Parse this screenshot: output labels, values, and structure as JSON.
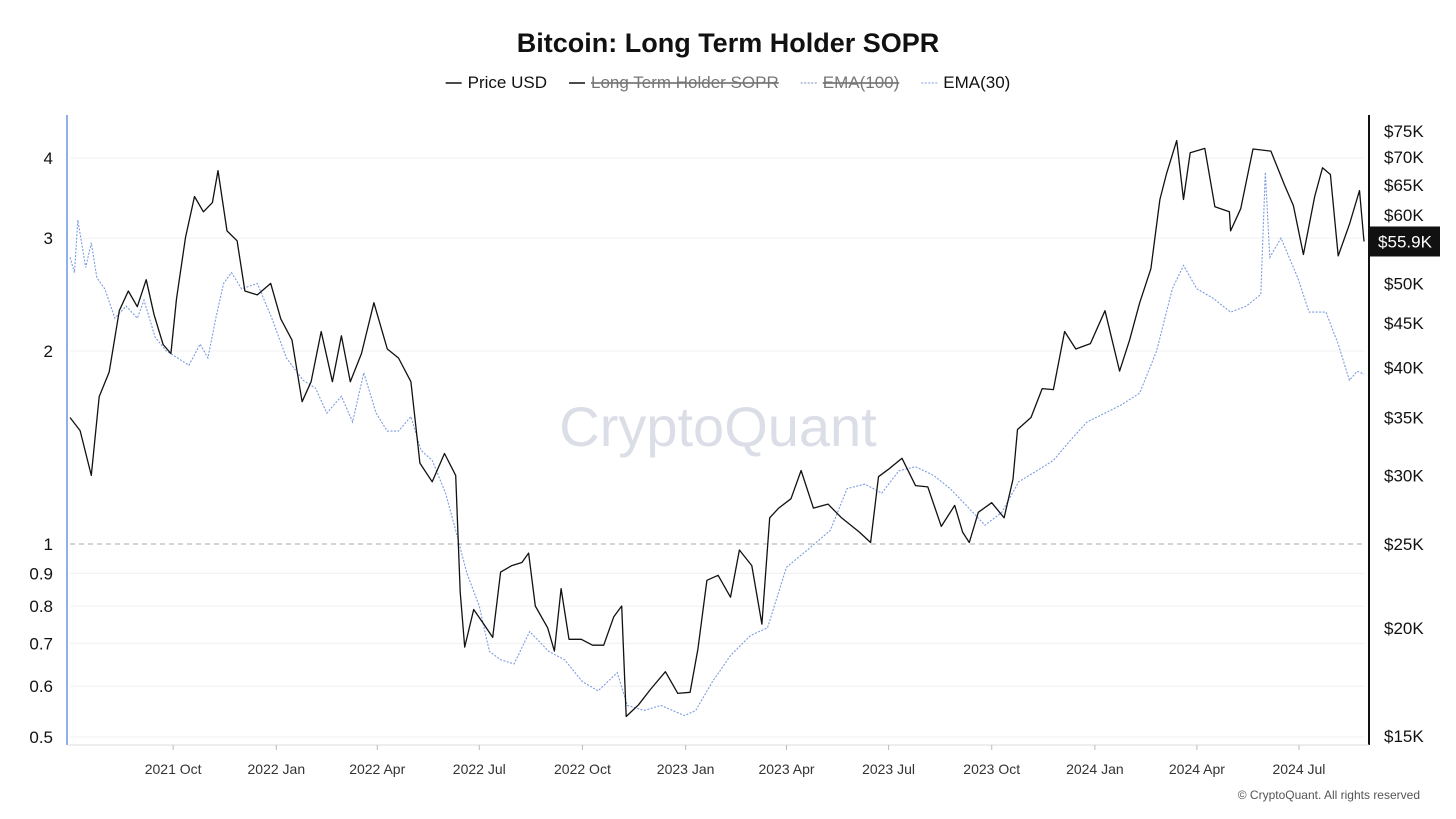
{
  "chart_data": {
    "type": "line",
    "title": "Bitcoin: Long Term Holder SOPR",
    "legend": {
      "placement": "top-center",
      "entries": [
        {
          "name": "Price USD",
          "active": true,
          "color": "#111111",
          "style": "solid"
        },
        {
          "name": "Long Term Holder SOPR",
          "active": false,
          "color": "#111111",
          "style": "solid"
        },
        {
          "name": "EMA(100)",
          "active": false,
          "color": "#7b8fb8",
          "style": "dashed"
        },
        {
          "name": "EMA(30)",
          "active": true,
          "color": "#7c9be0",
          "style": "dashed"
        }
      ]
    },
    "x_ticks": [
      "2021 Oct",
      "2022 Jan",
      "2022 Apr",
      "2022 Jul",
      "2022 Oct",
      "2023 Jan",
      "2023 Apr",
      "2023 Jul",
      "2023 Oct",
      "2024 Jan",
      "2024 Apr",
      "2024 Jul"
    ],
    "x_range": [
      "2021-07-01",
      "2024-08-28"
    ],
    "y_left": {
      "scale": "log",
      "range": [
        0.5,
        4.6
      ],
      "ticks": [
        {
          "value": 4,
          "label": "4"
        },
        {
          "value": 3,
          "label": "3"
        },
        {
          "value": 2,
          "label": "2"
        },
        {
          "value": 1,
          "label": "1"
        },
        {
          "value": 0.9,
          "label": "0.9"
        },
        {
          "value": 0.8,
          "label": "0.8"
        },
        {
          "value": 0.7,
          "label": "0.7"
        },
        {
          "value": 0.6,
          "label": "0.6"
        },
        {
          "value": 0.5,
          "label": "0.5"
        }
      ]
    },
    "y_right": {
      "scale": "log",
      "range": [
        15000,
        76000
      ],
      "ticks": [
        {
          "value": 75000,
          "label": "$75K"
        },
        {
          "value": 70000,
          "label": "$70K"
        },
        {
          "value": 65000,
          "label": "$65K"
        },
        {
          "value": 60000,
          "label": "$60K"
        },
        {
          "value": 50000,
          "label": "$50K"
        },
        {
          "value": 45000,
          "label": "$45K"
        },
        {
          "value": 40000,
          "label": "$40K"
        },
        {
          "value": 35000,
          "label": "$35K"
        },
        {
          "value": 30000,
          "label": "$30K"
        },
        {
          "value": 25000,
          "label": "$25K"
        },
        {
          "value": 20000,
          "label": "$20K"
        },
        {
          "value": 15000,
          "label": "$15K"
        }
      ]
    },
    "reference_line": {
      "axis": "left",
      "value": 1,
      "style": "dashed"
    },
    "current_value_badge": "$55.9K",
    "grid": true,
    "watermark": "CryptoQuant",
    "copyright": "© CryptoQuant. All rights reserved",
    "series": [
      {
        "name": "Price USD",
        "axis": "right",
        "points": [
          [
            "2021-07-01",
            35000
          ],
          [
            "2021-07-10",
            33800
          ],
          [
            "2021-07-20",
            30000
          ],
          [
            "2021-07-27",
            37000
          ],
          [
            "2021-08-05",
            39500
          ],
          [
            "2021-08-14",
            46500
          ],
          [
            "2021-08-22",
            49000
          ],
          [
            "2021-08-30",
            47000
          ],
          [
            "2021-09-07",
            50500
          ],
          [
            "2021-09-14",
            46000
          ],
          [
            "2021-09-22",
            42500
          ],
          [
            "2021-09-29",
            41500
          ],
          [
            "2021-10-04",
            48000
          ],
          [
            "2021-10-12",
            56500
          ],
          [
            "2021-10-20",
            63000
          ],
          [
            "2021-10-28",
            60500
          ],
          [
            "2021-11-05",
            62000
          ],
          [
            "2021-11-10",
            67500
          ],
          [
            "2021-11-18",
            57500
          ],
          [
            "2021-11-27",
            56000
          ],
          [
            "2021-12-04",
            49000
          ],
          [
            "2021-12-15",
            48500
          ],
          [
            "2021-12-27",
            50000
          ],
          [
            "2022-01-05",
            45500
          ],
          [
            "2022-01-15",
            43000
          ],
          [
            "2022-01-24",
            36500
          ],
          [
            "2022-02-01",
            38500
          ],
          [
            "2022-02-10",
            44000
          ],
          [
            "2022-02-20",
            38500
          ],
          [
            "2022-02-28",
            43500
          ],
          [
            "2022-03-08",
            38500
          ],
          [
            "2022-03-18",
            41500
          ],
          [
            "2022-03-29",
            47500
          ],
          [
            "2022-04-10",
            42000
          ],
          [
            "2022-04-20",
            41000
          ],
          [
            "2022-05-01",
            38500
          ],
          [
            "2022-05-09",
            31000
          ],
          [
            "2022-05-20",
            29500
          ],
          [
            "2022-05-31",
            31800
          ],
          [
            "2022-06-10",
            30000
          ],
          [
            "2022-06-14",
            22000
          ],
          [
            "2022-06-18",
            19000
          ],
          [
            "2022-06-26",
            21000
          ],
          [
            "2022-07-05",
            20200
          ],
          [
            "2022-07-13",
            19500
          ],
          [
            "2022-07-20",
            23200
          ],
          [
            "2022-07-30",
            23600
          ],
          [
            "2022-08-08",
            23800
          ],
          [
            "2022-08-14",
            24400
          ],
          [
            "2022-08-20",
            21200
          ],
          [
            "2022-08-31",
            20000
          ],
          [
            "2022-09-06",
            18800
          ],
          [
            "2022-09-12",
            22200
          ],
          [
            "2022-09-19",
            19400
          ],
          [
            "2022-09-30",
            19400
          ],
          [
            "2022-10-10",
            19100
          ],
          [
            "2022-10-20",
            19100
          ],
          [
            "2022-10-29",
            20600
          ],
          [
            "2022-11-05",
            21200
          ],
          [
            "2022-11-09",
            15800
          ],
          [
            "2022-11-20",
            16300
          ],
          [
            "2022-12-01",
            17000
          ],
          [
            "2022-12-14",
            17800
          ],
          [
            "2022-12-25",
            16800
          ],
          [
            "2023-01-05",
            16850
          ],
          [
            "2023-01-12",
            18900
          ],
          [
            "2023-01-20",
            22700
          ],
          [
            "2023-01-30",
            23000
          ],
          [
            "2023-02-10",
            21700
          ],
          [
            "2023-02-18",
            24600
          ],
          [
            "2023-03-01",
            23600
          ],
          [
            "2023-03-10",
            20200
          ],
          [
            "2023-03-17",
            26800
          ],
          [
            "2023-03-25",
            27500
          ],
          [
            "2023-04-05",
            28200
          ],
          [
            "2023-04-14",
            30400
          ],
          [
            "2023-04-25",
            27500
          ],
          [
            "2023-05-08",
            27800
          ],
          [
            "2023-05-20",
            26800
          ],
          [
            "2023-06-05",
            25800
          ],
          [
            "2023-06-15",
            25100
          ],
          [
            "2023-06-22",
            29900
          ],
          [
            "2023-07-01",
            30500
          ],
          [
            "2023-07-13",
            31400
          ],
          [
            "2023-07-25",
            29200
          ],
          [
            "2023-08-05",
            29100
          ],
          [
            "2023-08-17",
            26200
          ],
          [
            "2023-08-29",
            27700
          ],
          [
            "2023-09-05",
            25800
          ],
          [
            "2023-09-11",
            25100
          ],
          [
            "2023-09-19",
            27200
          ],
          [
            "2023-10-01",
            27900
          ],
          [
            "2023-10-12",
            26800
          ],
          [
            "2023-10-20",
            29700
          ],
          [
            "2023-10-24",
            33900
          ],
          [
            "2023-11-05",
            35000
          ],
          [
            "2023-11-15",
            37800
          ],
          [
            "2023-11-25",
            37700
          ],
          [
            "2023-12-05",
            44000
          ],
          [
            "2023-12-15",
            42000
          ],
          [
            "2023-12-28",
            42600
          ],
          [
            "2024-01-10",
            46500
          ],
          [
            "2024-01-23",
            39600
          ],
          [
            "2024-02-01",
            43000
          ],
          [
            "2024-02-10",
            47500
          ],
          [
            "2024-02-20",
            52000
          ],
          [
            "2024-02-28",
            62500
          ],
          [
            "2024-03-05",
            67000
          ],
          [
            "2024-03-14",
            73100
          ],
          [
            "2024-03-20",
            62500
          ],
          [
            "2024-03-26",
            70800
          ],
          [
            "2024-04-08",
            71600
          ],
          [
            "2024-04-17",
            61300
          ],
          [
            "2024-04-30",
            60500
          ],
          [
            "2024-05-01",
            57500
          ],
          [
            "2024-05-10",
            61000
          ],
          [
            "2024-05-21",
            71500
          ],
          [
            "2024-06-06",
            71100
          ],
          [
            "2024-06-18",
            65000
          ],
          [
            "2024-06-26",
            61500
          ],
          [
            "2024-07-05",
            54000
          ],
          [
            "2024-07-15",
            63000
          ],
          [
            "2024-07-22",
            68000
          ],
          [
            "2024-07-29",
            66800
          ],
          [
            "2024-08-05",
            53800
          ],
          [
            "2024-08-15",
            58500
          ],
          [
            "2024-08-24",
            64000
          ],
          [
            "2024-08-28",
            55900
          ]
        ]
      },
      {
        "name": "EMA(30)",
        "axis": "left",
        "points": [
          [
            "2021-07-01",
            2.8
          ],
          [
            "2021-07-05",
            2.65
          ],
          [
            "2021-07-08",
            3.2
          ],
          [
            "2021-07-15",
            2.7
          ],
          [
            "2021-07-20",
            2.95
          ],
          [
            "2021-07-25",
            2.6
          ],
          [
            "2021-08-01",
            2.5
          ],
          [
            "2021-08-10",
            2.25
          ],
          [
            "2021-08-20",
            2.35
          ],
          [
            "2021-08-30",
            2.25
          ],
          [
            "2021-09-05",
            2.4
          ],
          [
            "2021-09-15",
            2.1
          ],
          [
            "2021-09-25",
            2.0
          ],
          [
            "2021-10-05",
            1.95
          ],
          [
            "2021-10-15",
            1.9
          ],
          [
            "2021-10-25",
            2.05
          ],
          [
            "2021-11-01",
            1.95
          ],
          [
            "2021-11-08",
            2.25
          ],
          [
            "2021-11-15",
            2.55
          ],
          [
            "2021-11-22",
            2.65
          ],
          [
            "2021-12-01",
            2.5
          ],
          [
            "2021-12-15",
            2.55
          ],
          [
            "2021-12-28",
            2.25
          ],
          [
            "2022-01-10",
            1.95
          ],
          [
            "2022-01-25",
            1.8
          ],
          [
            "2022-02-05",
            1.75
          ],
          [
            "2022-02-15",
            1.6
          ],
          [
            "2022-02-28",
            1.7
          ],
          [
            "2022-03-10",
            1.55
          ],
          [
            "2022-03-20",
            1.85
          ],
          [
            "2022-03-31",
            1.6
          ],
          [
            "2022-04-10",
            1.5
          ],
          [
            "2022-04-20",
            1.5
          ],
          [
            "2022-05-01",
            1.58
          ],
          [
            "2022-05-10",
            1.4
          ],
          [
            "2022-05-20",
            1.35
          ],
          [
            "2022-06-01",
            1.2
          ],
          [
            "2022-06-10",
            1.05
          ],
          [
            "2022-06-20",
            0.9
          ],
          [
            "2022-07-01",
            0.8
          ],
          [
            "2022-07-10",
            0.68
          ],
          [
            "2022-07-20",
            0.66
          ],
          [
            "2022-08-01",
            0.65
          ],
          [
            "2022-08-15",
            0.73
          ],
          [
            "2022-09-01",
            0.68
          ],
          [
            "2022-09-15",
            0.66
          ],
          [
            "2022-10-01",
            0.61
          ],
          [
            "2022-10-15",
            0.59
          ],
          [
            "2022-11-01",
            0.63
          ],
          [
            "2022-11-10",
            0.56
          ],
          [
            "2022-11-25",
            0.55
          ],
          [
            "2022-12-10",
            0.56
          ],
          [
            "2022-12-31",
            0.54
          ],
          [
            "2023-01-10",
            0.55
          ],
          [
            "2023-01-25",
            0.61
          ],
          [
            "2023-02-10",
            0.67
          ],
          [
            "2023-02-28",
            0.72
          ],
          [
            "2023-03-15",
            0.74
          ],
          [
            "2023-04-01",
            0.92
          ],
          [
            "2023-04-20",
            0.98
          ],
          [
            "2023-05-10",
            1.05
          ],
          [
            "2023-05-25",
            1.22
          ],
          [
            "2023-06-10",
            1.24
          ],
          [
            "2023-06-25",
            1.2
          ],
          [
            "2023-07-10",
            1.3
          ],
          [
            "2023-07-25",
            1.32
          ],
          [
            "2023-08-10",
            1.28
          ],
          [
            "2023-08-25",
            1.22
          ],
          [
            "2023-09-10",
            1.14
          ],
          [
            "2023-09-25",
            1.07
          ],
          [
            "2023-10-10",
            1.12
          ],
          [
            "2023-10-25",
            1.25
          ],
          [
            "2023-11-10",
            1.3
          ],
          [
            "2023-11-25",
            1.35
          ],
          [
            "2023-12-10",
            1.45
          ],
          [
            "2023-12-25",
            1.55
          ],
          [
            "2024-01-10",
            1.6
          ],
          [
            "2024-01-25",
            1.65
          ],
          [
            "2024-02-10",
            1.72
          ],
          [
            "2024-02-25",
            2.0
          ],
          [
            "2024-03-10",
            2.5
          ],
          [
            "2024-03-20",
            2.72
          ],
          [
            "2024-04-01",
            2.5
          ],
          [
            "2024-04-15",
            2.42
          ],
          [
            "2024-05-01",
            2.3
          ],
          [
            "2024-05-15",
            2.35
          ],
          [
            "2024-05-28",
            2.45
          ],
          [
            "2024-06-01",
            3.8
          ],
          [
            "2024-06-05",
            2.8
          ],
          [
            "2024-06-15",
            3.0
          ],
          [
            "2024-06-30",
            2.6
          ],
          [
            "2024-07-10",
            2.3
          ],
          [
            "2024-07-25",
            2.3
          ],
          [
            "2024-08-05",
            2.05
          ],
          [
            "2024-08-15",
            1.8
          ],
          [
            "2024-08-22",
            1.86
          ],
          [
            "2024-08-28",
            1.84
          ]
        ]
      }
    ]
  }
}
